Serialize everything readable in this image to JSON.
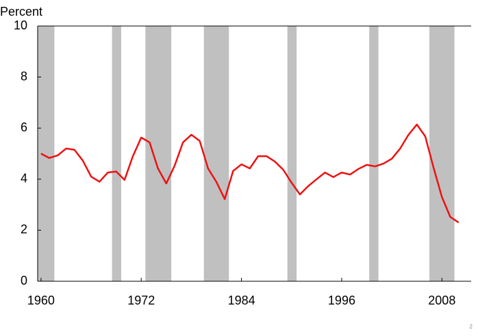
{
  "chart_data": {
    "type": "line",
    "y_label": "Percent",
    "x": [
      1960,
      1961,
      1962,
      1963,
      1964,
      1965,
      1966,
      1967,
      1968,
      1969,
      1970,
      1971,
      1972,
      1973,
      1974,
      1975,
      1976,
      1977,
      1978,
      1979,
      1980,
      1981,
      1982,
      1983,
      1984,
      1985,
      1986,
      1987,
      1988,
      1989,
      1990,
      1991,
      1992,
      1993,
      1994,
      1995,
      1996,
      1997,
      1998,
      1999,
      2000,
      2001,
      2002,
      2003,
      2004,
      2005,
      2006,
      2007,
      2008,
      2009,
      2010
    ],
    "series": [
      {
        "color": "#ee1111",
        "values": [
          5.0,
          4.83,
          4.93,
          5.2,
          5.15,
          4.73,
          4.1,
          3.9,
          4.26,
          4.3,
          3.97,
          4.9,
          5.63,
          5.44,
          4.42,
          3.83,
          4.53,
          5.44,
          5.74,
          5.5,
          4.42,
          3.89,
          3.22,
          4.32,
          4.58,
          4.42,
          4.9,
          4.9,
          4.69,
          4.37,
          3.86,
          3.4,
          3.73,
          4.0,
          4.26,
          4.08,
          4.26,
          4.18,
          4.4,
          4.56,
          4.5,
          4.61,
          4.8,
          5.2,
          5.74,
          6.14,
          5.68,
          4.45,
          3.3,
          2.52,
          2.3
        ]
      }
    ],
    "shaded_ranges": [
      [
        1959.6,
        1961.6
      ],
      [
        1968.5,
        1969.6
      ],
      [
        1972.5,
        1975.6
      ],
      [
        1979.5,
        1982.5
      ],
      [
        1989.5,
        1990.6
      ],
      [
        1999.3,
        2000.4
      ],
      [
        2006.5,
        2009.5
      ]
    ],
    "shade_color": "#c0c0c0",
    "xlim": [
      1959.6,
      2011.5
    ],
    "xticks": [
      1960,
      1972,
      1984,
      1996,
      2008
    ],
    "ylim": [
      0,
      10
    ],
    "yticks": [
      0,
      2,
      4,
      6,
      8,
      10
    ]
  },
  "page_number": "2"
}
